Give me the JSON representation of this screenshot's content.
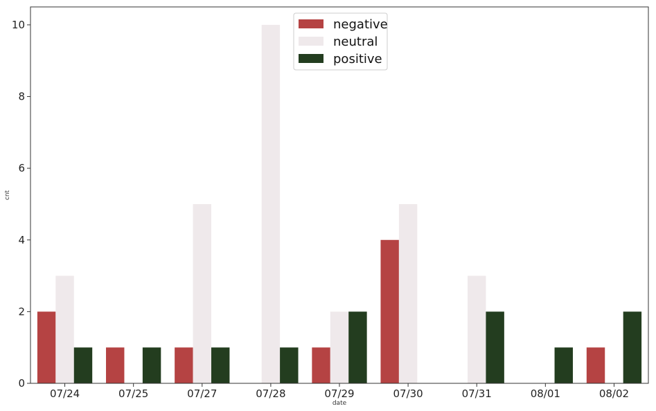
{
  "chart_data": {
    "type": "bar",
    "xlabel": "date",
    "ylabel": "cnt",
    "categories": [
      "07/24",
      "07/25",
      "07/27",
      "07/28",
      "07/29",
      "07/30",
      "07/31",
      "08/01",
      "08/02"
    ],
    "series": [
      {
        "name": "negative",
        "color": "#b54343",
        "values": [
          2,
          1,
          1,
          0,
          1,
          4,
          0,
          0,
          1
        ]
      },
      {
        "name": "neutral",
        "color": "#efe9eb",
        "values": [
          3,
          0,
          5,
          10,
          2,
          5,
          3,
          0,
          0
        ]
      },
      {
        "name": "positive",
        "color": "#233d1f",
        "values": [
          1,
          1,
          1,
          1,
          2,
          0,
          2,
          1,
          2
        ]
      }
    ],
    "ylim": [
      0,
      10.5
    ],
    "yticks": [
      0,
      2,
      4,
      6,
      8,
      10
    ],
    "grid": false,
    "legend_position": "top-center"
  }
}
